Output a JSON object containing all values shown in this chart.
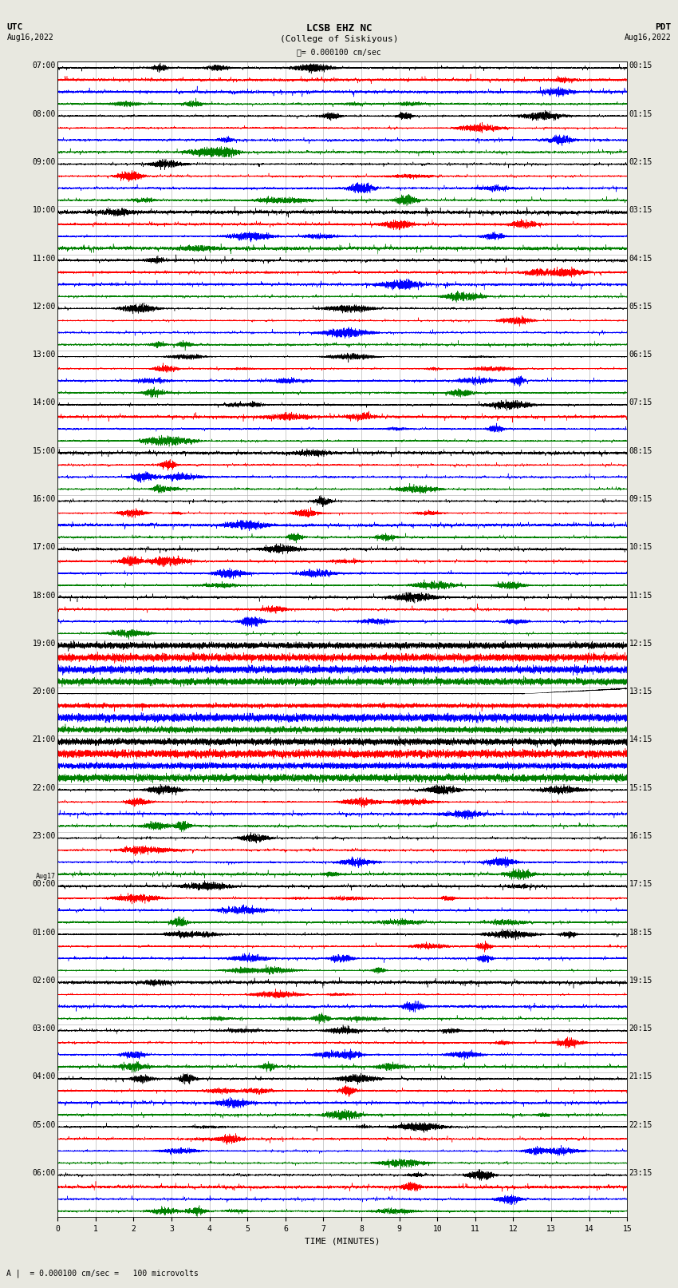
{
  "title_line1": "LCSB EHZ NC",
  "title_line2": "(College of Siskiyous)",
  "scale_label": "= 0.000100 cm/sec",
  "left_header_line1": "UTC",
  "left_header_line2": "Aug16,2022",
  "right_header_line1": "PDT",
  "right_header_line2": "Aug16,2022",
  "bottom_label": "TIME (MINUTES)",
  "bottom_note": "= 0.000100 cm/sec =   100 microvolts",
  "xlabel_ticks": [
    0,
    1,
    2,
    3,
    4,
    5,
    6,
    7,
    8,
    9,
    10,
    11,
    12,
    13,
    14,
    15
  ],
  "utc_times": [
    "07:00",
    "08:00",
    "09:00",
    "10:00",
    "11:00",
    "12:00",
    "13:00",
    "14:00",
    "15:00",
    "16:00",
    "17:00",
    "18:00",
    "19:00",
    "20:00",
    "21:00",
    "22:00",
    "23:00",
    "Aug17\n00:00",
    "01:00",
    "02:00",
    "03:00",
    "04:00",
    "05:00",
    "06:00"
  ],
  "pdt_times": [
    "00:15",
    "01:15",
    "02:15",
    "03:15",
    "04:15",
    "05:15",
    "06:15",
    "07:15",
    "08:15",
    "09:15",
    "10:15",
    "11:15",
    "12:15",
    "13:15",
    "14:15",
    "15:15",
    "16:15",
    "17:15",
    "18:15",
    "19:15",
    "20:15",
    "21:15",
    "22:15",
    "23:15"
  ],
  "colors": [
    "black",
    "red",
    "blue",
    "green"
  ],
  "bg_color": "#e8e8e0",
  "plot_bg": "#ffffff",
  "n_rows": 24,
  "traces_per_row": 4,
  "n_points": 9000,
  "fig_width": 8.5,
  "fig_height": 16.13,
  "dpi": 100,
  "xmin": 0,
  "xmax": 15,
  "font_size_title": 9,
  "font_size_labels": 7,
  "font_size_ticks": 7,
  "font_size_note": 7,
  "quiet_rows": [
    12,
    13
  ],
  "big_signal_row": 13,
  "step_signal_row": 12,
  "red_flat_row": 13
}
